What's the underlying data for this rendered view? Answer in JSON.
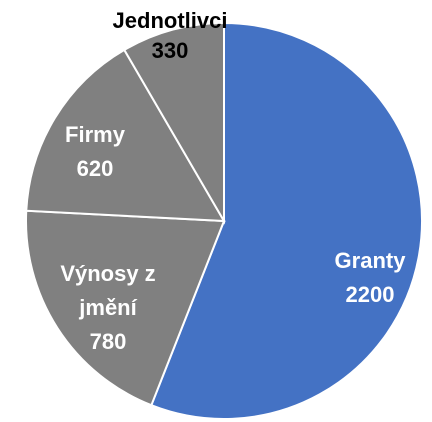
{
  "chart_data": {
    "type": "pie",
    "start_angle_deg": 0,
    "direction": "clockwise",
    "slices": [
      {
        "label": "Granty",
        "value": 2200,
        "color": "#4472C4",
        "label_color": "#FFFFFF"
      },
      {
        "label": "Výnosy z jmění",
        "value": 780,
        "color": "#808080",
        "label_color": "#FFFFFF"
      },
      {
        "label": "Firmy",
        "value": 620,
        "color": "#808080",
        "label_color": "#FFFFFF"
      },
      {
        "label": "Jednotlivci",
        "value": 330,
        "color": "#808080",
        "label_color": "#000000"
      }
    ]
  }
}
